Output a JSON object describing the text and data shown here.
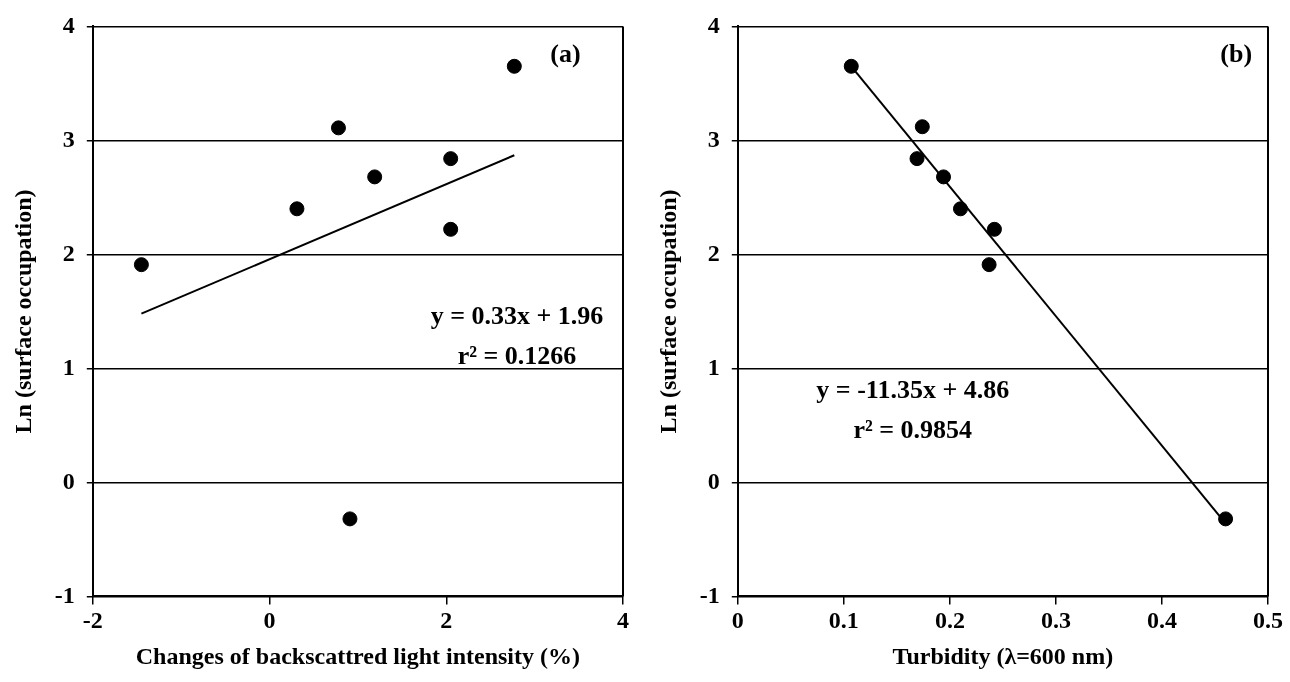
{
  "chart_data": [
    {
      "type": "scatter",
      "xlabel": "Changes of backscattred light intensity (%)",
      "ylabel": "Ln (surface occupation)",
      "xlim": [
        -2,
        4
      ],
      "xticks": [
        -2,
        0,
        2,
        4
      ],
      "ylim": [
        -1,
        4
      ],
      "yticks": [
        -1,
        0,
        1,
        2,
        3,
        4
      ],
      "grid": "y",
      "legend": false,
      "marker": "circle",
      "annotations": [
        "(a)",
        "y = 0.33x + 1.96",
        "r² = 0.1266"
      ],
      "series": [
        {
          "type": "scatter",
          "color": "#000000",
          "x": [
            -1.45,
            0.31,
            0.78,
            1.19,
            2.05,
            2.05,
            2.77,
            0.91
          ],
          "values": [
            1.91,
            2.4,
            3.11,
            2.68,
            2.84,
            2.22,
            3.65,
            -0.32
          ]
        },
        {
          "type": "line",
          "color": "#000000",
          "marker": "none",
          "x": [
            -1.45,
            2.77
          ],
          "values": [
            1.48,
            2.87
          ]
        }
      ]
    },
    {
      "type": "scatter",
      "xlabel": "Turbidity (λ=600 nm)",
      "ylabel": "Ln (surface occupation)",
      "xlim": [
        0,
        0.5
      ],
      "xticks": [
        0,
        0.1,
        0.2,
        0.3,
        0.4,
        0.5
      ],
      "ylim": [
        -1,
        4
      ],
      "yticks": [
        -1,
        0,
        1,
        2,
        3,
        4
      ],
      "grid": "y",
      "legend": false,
      "marker": "circle",
      "annotations": [
        "(b)",
        "y = -11.35x + 4.86",
        "r² = 0.9854"
      ],
      "series": [
        {
          "type": "scatter",
          "color": "#000000",
          "x": [
            0.107,
            0.174,
            0.169,
            0.194,
            0.21,
            0.242,
            0.237,
            0.46
          ],
          "values": [
            3.65,
            3.12,
            2.84,
            2.68,
            2.4,
            2.22,
            1.91,
            -0.32
          ]
        },
        {
          "type": "line",
          "color": "#000000",
          "marker": "none",
          "x": [
            0.107,
            0.46
          ],
          "values": [
            3.65,
            -0.36
          ]
        }
      ]
    }
  ]
}
